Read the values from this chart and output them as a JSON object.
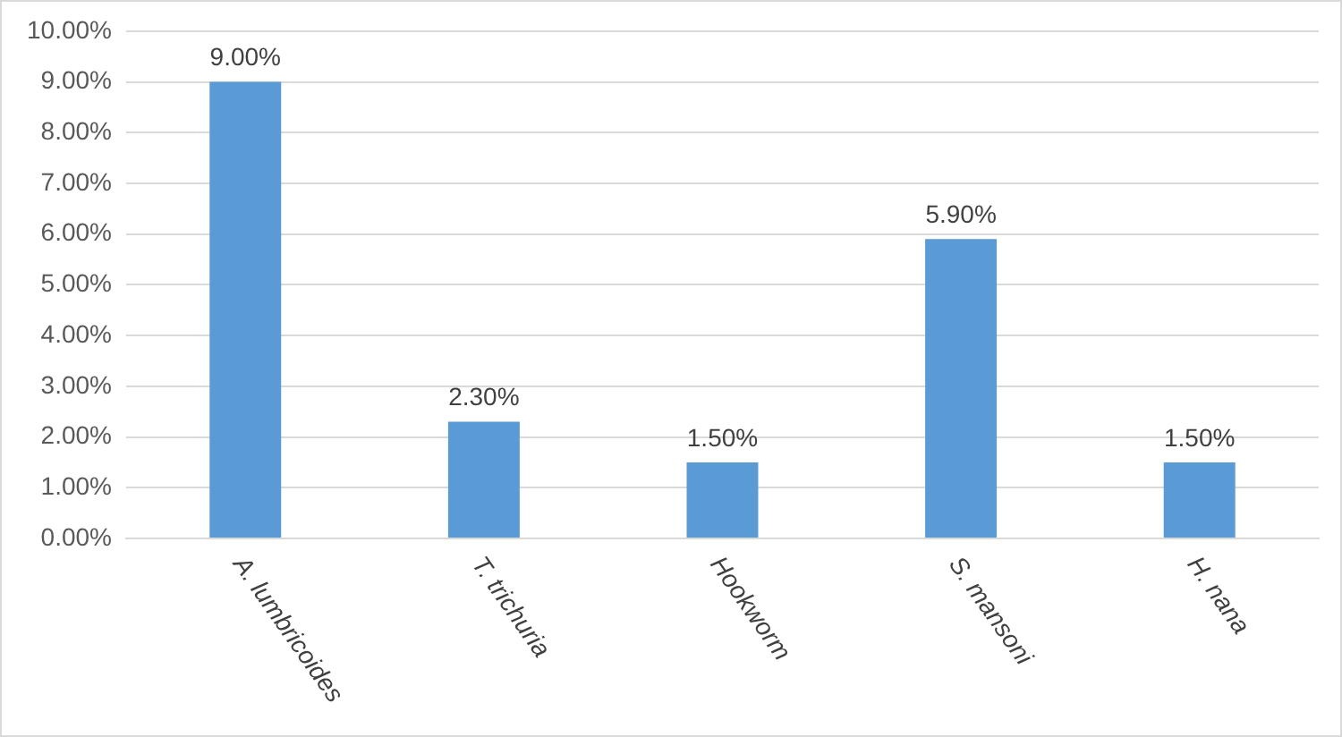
{
  "chart_data": {
    "type": "bar",
    "categories": [
      "A. lumbricoides",
      "T. trichuria",
      "Hookworm",
      "S. mansoni",
      "H. nana"
    ],
    "values": [
      9.0,
      2.3,
      1.5,
      5.9,
      1.5
    ],
    "value_labels": [
      "9.00%",
      "2.30%",
      "1.50%",
      "5.90%",
      "1.50%"
    ],
    "color": "#5b9bd5",
    "ylim": [
      0,
      10
    ],
    "yticks": [
      {
        "value": 0,
        "label": "0.00%"
      },
      {
        "value": 1,
        "label": "1.00%"
      },
      {
        "value": 2,
        "label": "2.00%"
      },
      {
        "value": 3,
        "label": "3.00%"
      },
      {
        "value": 4,
        "label": "4.00%"
      },
      {
        "value": 5,
        "label": "5.00%"
      },
      {
        "value": 6,
        "label": "6.00%"
      },
      {
        "value": 7,
        "label": "7.00%"
      },
      {
        "value": 8,
        "label": "8.00%"
      },
      {
        "value": 9,
        "label": "9.00%"
      },
      {
        "value": 10,
        "label": "10.00%"
      }
    ],
    "grid": "y",
    "legend": false
  }
}
